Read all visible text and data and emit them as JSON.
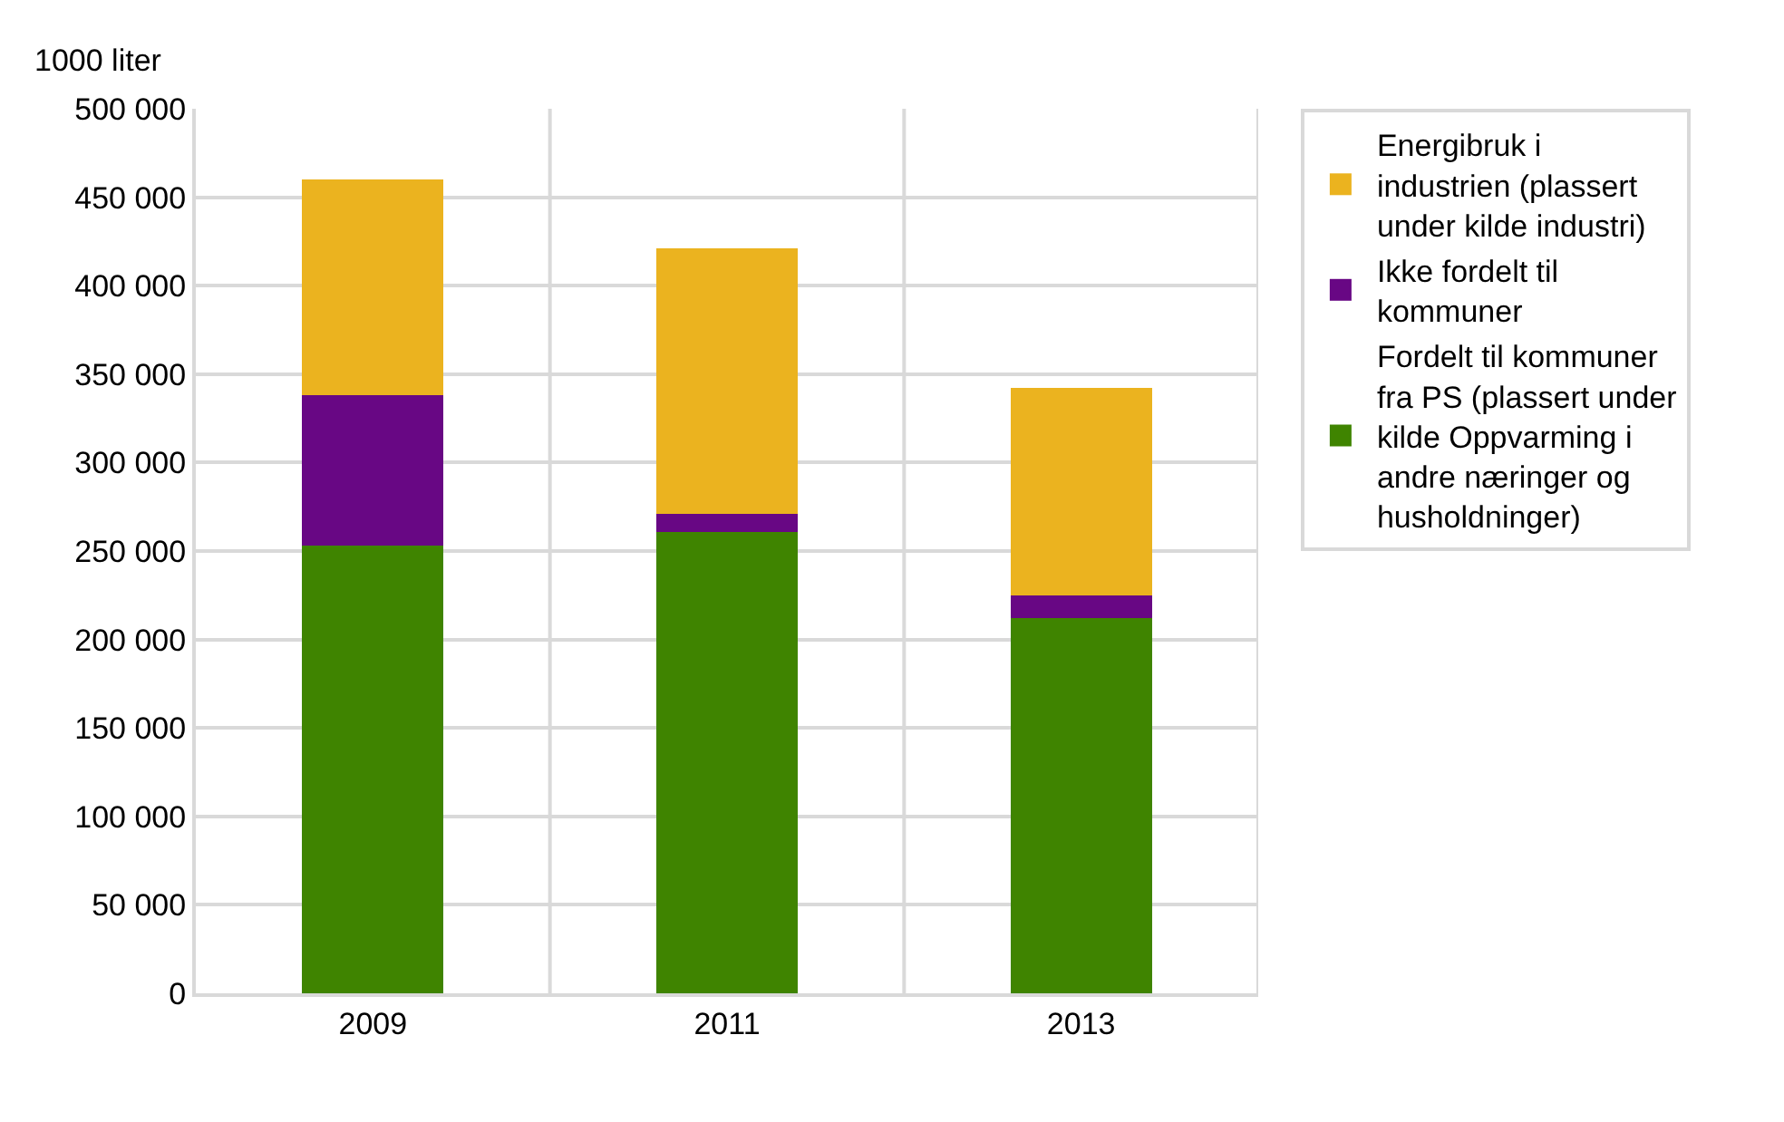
{
  "chart_data": {
    "type": "bar",
    "stacked": true,
    "ylabel": "1000 liter",
    "categories": [
      "2009",
      "2011",
      "2013"
    ],
    "series": [
      {
        "name": "Fordelt til kommuner fra PS (plassert under kilde Oppvarming i andre næringer og husholdninger)",
        "color": "#3f8400",
        "values": [
          253000,
          261000,
          212000
        ]
      },
      {
        "name": "Ikke fordelt til kommuner",
        "color": "#680784",
        "values": [
          85000,
          10000,
          13000
        ]
      },
      {
        "name": "Energibruk i industrien (plassert under kilde industri)",
        "color": "#ebb31f",
        "values": [
          122000,
          150000,
          117000
        ]
      }
    ],
    "ylim": [
      0,
      500000
    ],
    "yticks": [
      0,
      {
        "value": 50000,
        "label": "50 000"
      },
      {
        "value": 100000,
        "label": "100 000"
      },
      {
        "value": 150000,
        "label": "150 000"
      },
      {
        "value": 200000,
        "label": "200 000"
      },
      {
        "value": 250000,
        "label": "250 000"
      },
      {
        "value": 300000,
        "label": "300 000"
      },
      {
        "value": 350000,
        "label": "350 000"
      },
      {
        "value": 400000,
        "label": "400 000"
      },
      {
        "value": 450000,
        "label": "450 000"
      },
      {
        "value": 500000,
        "label": "500 000"
      }
    ],
    "grid": true,
    "legend": "right"
  }
}
